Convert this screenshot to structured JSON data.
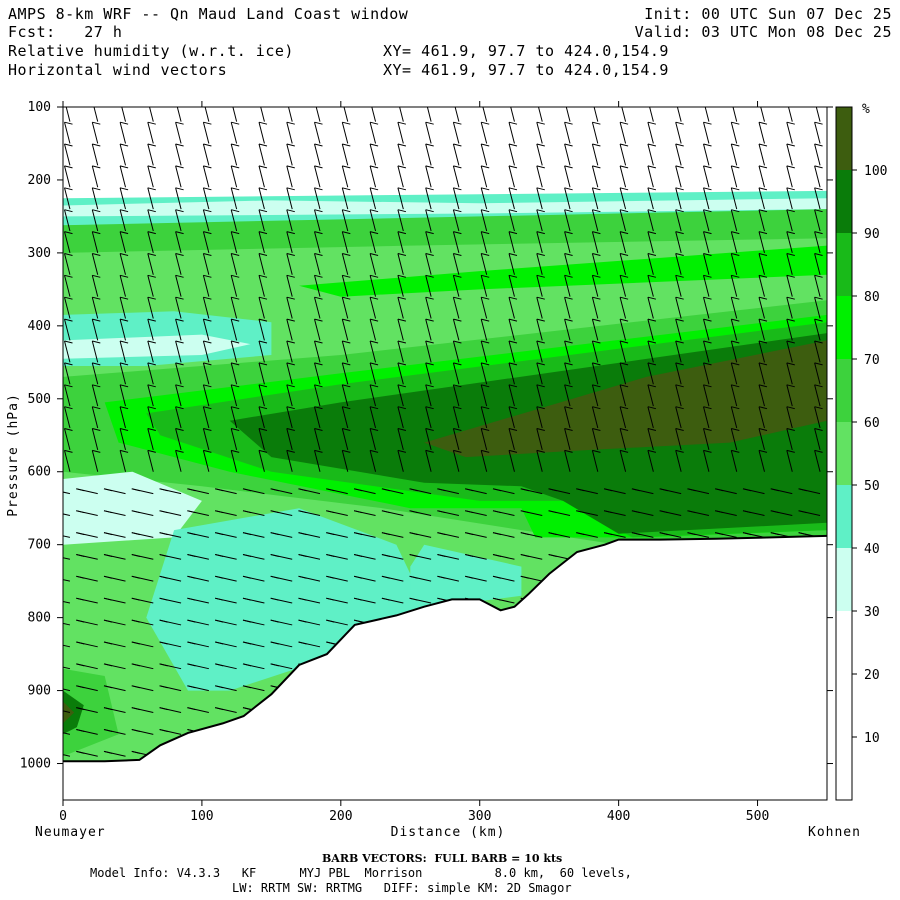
{
  "header": {
    "title_left": "AMPS 8-km WRF -- Qn Maud Land Coast window",
    "init": "Init: 00 UTC Sun 07 Dec 25",
    "fcst": "Fcst:   27 h",
    "valid": "Valid: 03 UTC Mon 08 Dec 25",
    "field1": "Relative humidity (w.r.t. ice)",
    "field1_xy": "XY= 461.9, 97.7 to 424.0,154.9",
    "field2": "Horizontal wind vectors",
    "field2_xy": "XY= 461.9, 97.7 to 424.0,154.9"
  },
  "footer": {
    "barb_note": "BARB VECTORS:  FULL BARB = 10 kts",
    "model_line1": "Model Info: V4.3.3   KF      MYJ PBL  Morrison          8.0 km,  60 levels,",
    "model_line2": "LW: RRTM SW: RRTMG   DIFF: simple KM: 2D Smagor"
  },
  "colors": {
    "rh_30_40": "#ccfff0",
    "rh_40_50": "#5ff0c6",
    "rh_50_60": "#62e262",
    "rh_60_70": "#3dd23d",
    "rh_70_80": "#00f000",
    "rh_80_90": "#19ba19",
    "rh_90_100": "#0a7c0a",
    "rh_100_plus": "#3d5d0f",
    "terrain_line": "#000000"
  },
  "chart_data": {
    "type": "cross-section",
    "xlabel": "Distance (km)",
    "ylabel": "Pressure (hPa)",
    "xlim": [
      0,
      550
    ],
    "ylim": [
      1050,
      100
    ],
    "x_ticks": [
      0,
      100,
      200,
      300,
      400,
      500
    ],
    "y_ticks": [
      100,
      200,
      300,
      400,
      500,
      600,
      700,
      800,
      900,
      1000
    ],
    "left_endpoint": "Neumayer",
    "right_endpoint": "Kohnen",
    "colorbar": {
      "unit": "%",
      "ticks": [
        10,
        20,
        30,
        40,
        50,
        60,
        70,
        80,
        90,
        100
      ]
    },
    "terrain_surface": {
      "x_km": [
        0,
        30,
        55,
        70,
        90,
        115,
        130,
        150,
        170,
        190,
        210,
        240,
        260,
        280,
        300,
        315,
        325,
        335,
        350,
        370,
        390,
        400,
        430,
        470,
        510,
        550
      ],
      "pressure_hpa": [
        997,
        997,
        995,
        975,
        958,
        945,
        935,
        905,
        865,
        850,
        810,
        797,
        785,
        775,
        775,
        790,
        785,
        768,
        740,
        710,
        700,
        693,
        693,
        692,
        690,
        688
      ]
    }
  }
}
